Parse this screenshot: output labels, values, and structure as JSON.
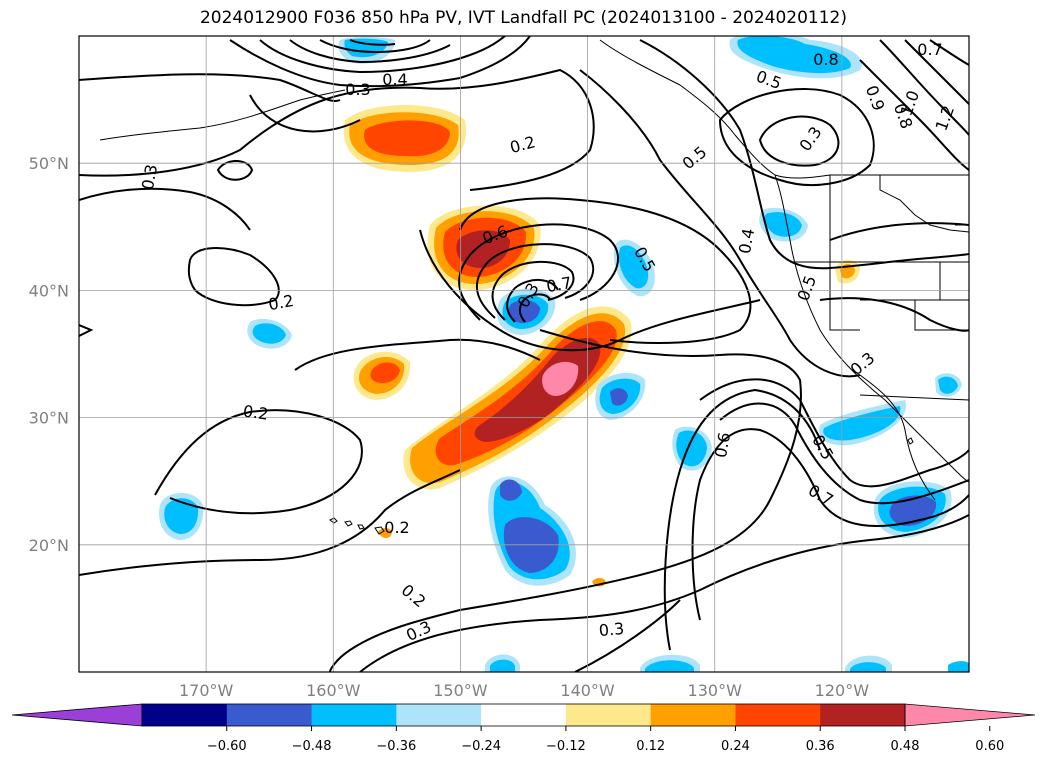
{
  "title": "2024012900 F036 850 hPa PV, IVT Landfall PC (2024013100 - 2024020112)",
  "map": {
    "lon_range": [
      -180,
      -110
    ],
    "lat_range": [
      10,
      60
    ],
    "lon_ticks": [
      {
        "value": -170,
        "label": "170°W"
      },
      {
        "value": -160,
        "label": "160°W"
      },
      {
        "value": -150,
        "label": "150°W"
      },
      {
        "value": -140,
        "label": "140°W"
      },
      {
        "value": -130,
        "label": "130°W"
      },
      {
        "value": -120,
        "label": "120°W"
      }
    ],
    "lat_ticks": [
      {
        "value": 20,
        "label": "20°N"
      },
      {
        "value": 30,
        "label": "30°N"
      },
      {
        "value": 40,
        "label": "40°N"
      },
      {
        "value": 50,
        "label": "50°N"
      }
    ],
    "gridlines": true,
    "contour_labels": [
      "0.3",
      "0.4",
      "0.2",
      "0.3",
      "0.6",
      "0.5",
      "0.7",
      "0.3",
      "0.2",
      "0.5",
      "0.2",
      "0.2",
      "0.2",
      "0.3",
      "0.6",
      "0.5",
      "0.7",
      "0.5",
      "0.3",
      "0.4",
      "0.3",
      "0.8",
      "0.9",
      "0.8",
      "1.0",
      "1.2",
      "0.7",
      "0.5",
      "0.3"
    ]
  },
  "colorbar": {
    "extend": "both",
    "colors": [
      "#9a3fd8",
      "#00008b",
      "#3a5bd0",
      "#00bfff",
      "#ade4fb",
      "#ffffff",
      "#fde98c",
      "#ff9f00",
      "#ff4500",
      "#b22222",
      "#ff88aa"
    ],
    "ticks": [
      "−0.60",
      "−0.48",
      "−0.36",
      "−0.24",
      "−0.12",
      "0.12",
      "0.24",
      "0.36",
      "0.48",
      "0.60"
    ]
  }
}
